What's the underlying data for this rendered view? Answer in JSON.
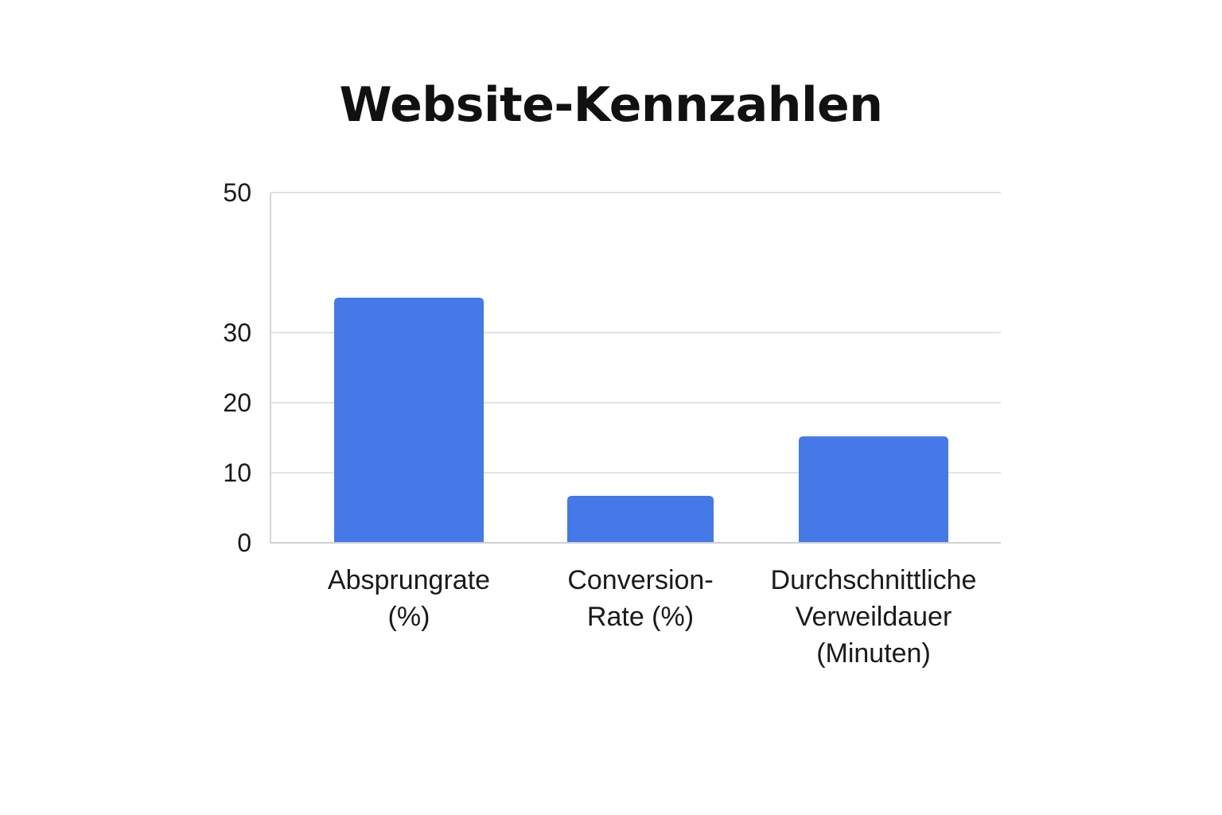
{
  "chart_data": {
    "type": "bar",
    "title": "Website-Kennzahlen",
    "categories": [
      [
        "Absprungrate",
        "(%)"
      ],
      [
        "Conversion-",
        "Rate (%)"
      ],
      [
        "Durchschnittliche",
        "Verweildauer",
        "(Minuten)"
      ]
    ],
    "values": [
      35,
      6.7,
      15.2
    ],
    "ylim": [
      0,
      50
    ],
    "yticks": [
      0,
      10,
      20,
      30,
      50
    ],
    "grid": true,
    "bar_color": "#4679E8"
  }
}
